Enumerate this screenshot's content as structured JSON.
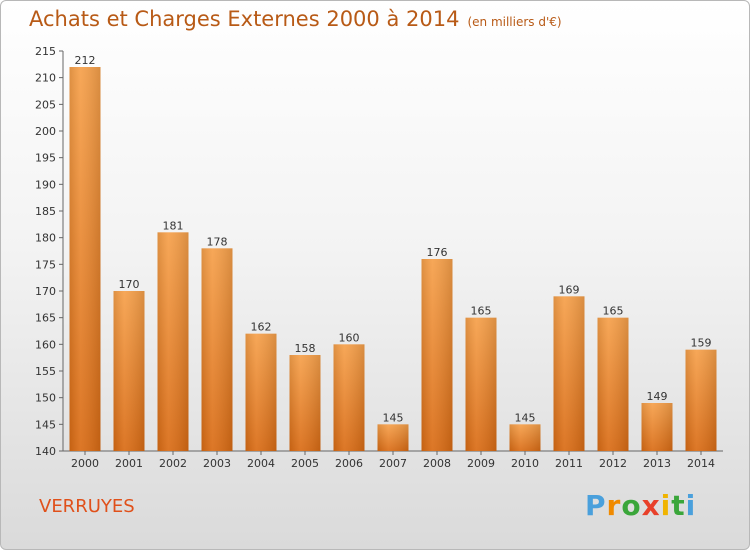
{
  "chart_data": {
    "type": "bar",
    "title": "Achats et Charges Externes 2000 à 2014",
    "unit": "(en milliers d'€)",
    "categories": [
      "2000",
      "2001",
      "2002",
      "2003",
      "2004",
      "2005",
      "2006",
      "2007",
      "2008",
      "2009",
      "2010",
      "2011",
      "2012",
      "2013",
      "2014"
    ],
    "values": [
      212,
      170,
      181,
      178,
      162,
      158,
      160,
      145,
      176,
      165,
      145,
      169,
      165,
      149,
      159
    ],
    "ylim": [
      140,
      215
    ],
    "yticks": [
      140,
      145,
      150,
      155,
      160,
      165,
      170,
      175,
      180,
      185,
      190,
      195,
      200,
      205,
      210,
      215
    ],
    "xlabel": "",
    "ylabel": "",
    "grid": false,
    "bar_color": "#f0902e"
  },
  "footer": {
    "commune": "VERRUYES",
    "logo": {
      "p": "P",
      "r": "r",
      "o": "o",
      "x": "x",
      "i1": "i",
      "t": "t",
      "i2": "i"
    }
  }
}
